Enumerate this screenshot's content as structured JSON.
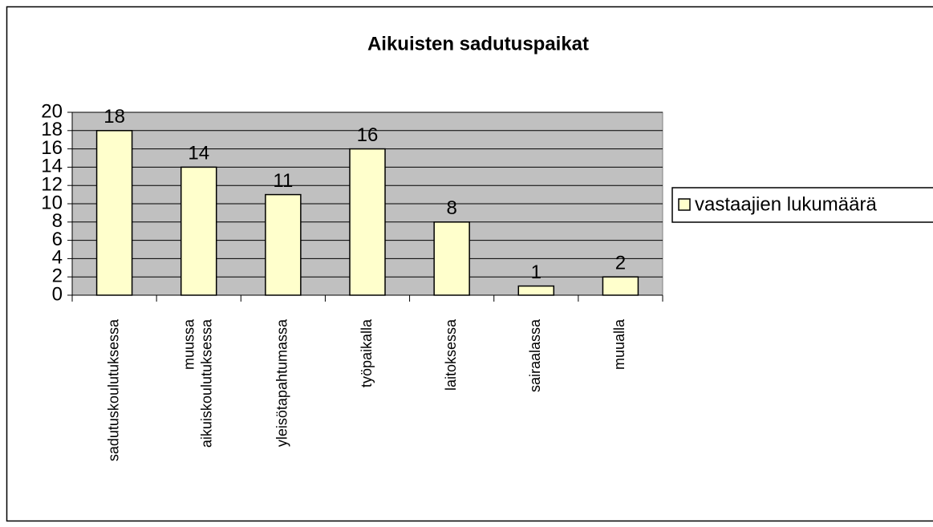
{
  "chart_data": {
    "type": "bar",
    "title": "Aikuisten sadutuspaikat",
    "categories": [
      "sadutuskoulutuksessa",
      "muussa aikuiskoulutuksessa",
      "yleisötapahtumassa",
      "työpaikalla",
      "laitoksessa",
      "sairaalassa",
      "muualla"
    ],
    "series": [
      {
        "name": "vastaajien lukumäärä",
        "color": "#ffffcc",
        "values": [
          18,
          14,
          11,
          16,
          8,
          1,
          2
        ]
      }
    ],
    "ylim": [
      0,
      20
    ],
    "yticks": [
      0,
      2,
      4,
      6,
      8,
      10,
      12,
      14,
      16,
      18,
      20
    ],
    "grid": true,
    "legend": "right"
  }
}
